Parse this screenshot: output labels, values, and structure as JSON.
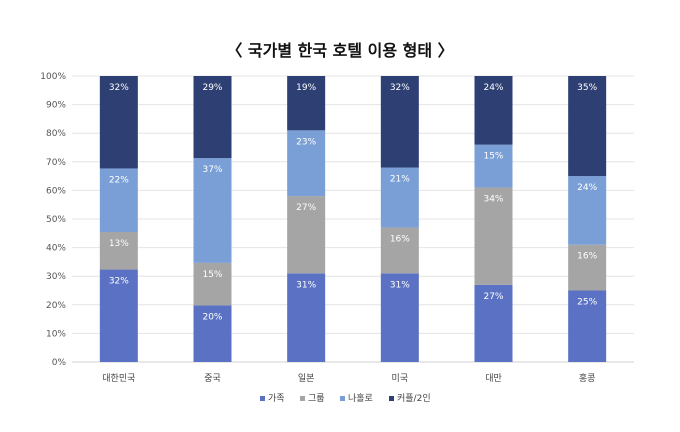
{
  "chart_data": {
    "type": "bar",
    "stacked": true,
    "title": "〈 국가별 한국 호텔 이용 형태 〉",
    "categories": [
      "대한민국",
      "중국",
      "일본",
      "미국",
      "대만",
      "홍콩"
    ],
    "series": [
      {
        "name": "가족",
        "color": "#5b72c4",
        "values": [
          32,
          20,
          31,
          31,
          27,
          25
        ]
      },
      {
        "name": "그룹",
        "color": "#a5a5a5",
        "values": [
          13,
          15,
          27,
          16,
          34,
          16
        ]
      },
      {
        "name": "나홀로",
        "color": "#7a9fd6",
        "values": [
          22,
          37,
          23,
          21,
          15,
          24
        ]
      },
      {
        "name": "커플/2인",
        "color": "#2e3f73",
        "values": [
          32,
          29,
          19,
          32,
          24,
          35
        ]
      }
    ],
    "data_labels": [
      [
        "32%",
        "20%",
        "31%",
        "31%",
        "27%",
        "25%"
      ],
      [
        "13%",
        "15%",
        "27%",
        "16%",
        "34%",
        "16%"
      ],
      [
        "22%",
        "37%",
        "23%",
        "21%",
        "15%",
        "24%"
      ],
      [
        "32%",
        "29%",
        "19%",
        "32%",
        "24%",
        "35%"
      ]
    ],
    "ylim": [
      0,
      100
    ],
    "yticks": [
      "0%",
      "10%",
      "20%",
      "30%",
      "40%",
      "50%",
      "60%",
      "70%",
      "80%",
      "90%",
      "100%"
    ],
    "legend_position": "bottom",
    "grid": true,
    "xlabel": "",
    "ylabel": ""
  }
}
